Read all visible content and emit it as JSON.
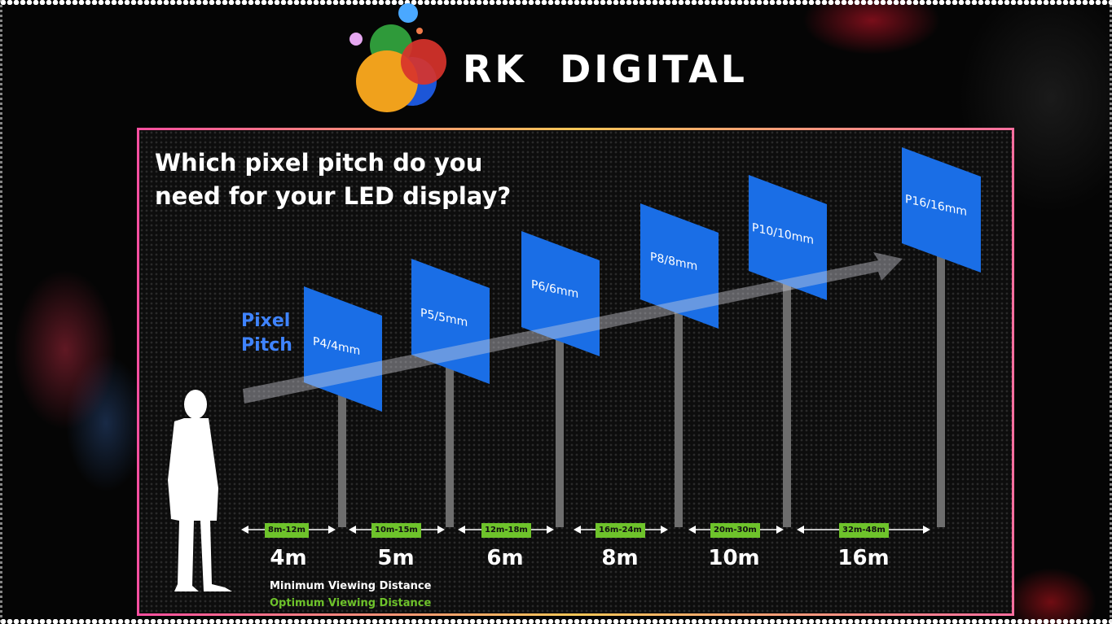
{
  "brand": {
    "name": "RK  DIGITAL"
  },
  "heading": {
    "line1": "Which pixel pitch do you",
    "line2": "need for your LED display?"
  },
  "axis_label": {
    "line1": "Pixel",
    "line2": "Pitch"
  },
  "signs": [
    {
      "label": "P4/4mm",
      "range": "8m-12m",
      "distance": "4m"
    },
    {
      "label": "P5/5mm",
      "range": "10m-15m",
      "distance": "5m"
    },
    {
      "label": "P6/6mm",
      "range": "12m-18m",
      "distance": "6m"
    },
    {
      "label": "P8/8mm",
      "range": "16m-24m",
      "distance": "8m"
    },
    {
      "label": "P10/10mm",
      "range": "20m-30m",
      "distance": "10m"
    },
    {
      "label": "P16/16mm",
      "range": "32m-48m",
      "distance": "16m"
    }
  ],
  "legend": {
    "minimum": "Minimum Viewing Distance",
    "optimum": "Optimum Viewing Distance"
  },
  "colors": {
    "sign_blue": "#1a6ee6",
    "range_green": "#6ec32b",
    "pitch_blue": "#3f84ff"
  },
  "icons": [
    "logo-circles-icon",
    "person-silhouette-icon",
    "arrow-right-icon"
  ]
}
